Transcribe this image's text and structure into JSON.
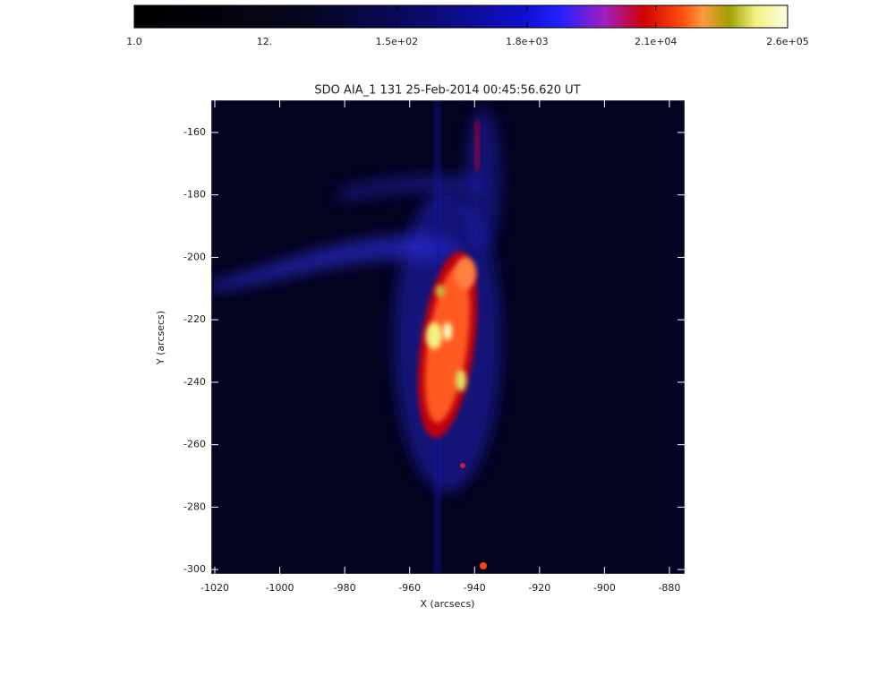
{
  "chart_data": {
    "type": "image",
    "title": "SDO AIA_1 131 25-Feb-2014 00:45:56.620 UT",
    "x_label": "X (arcsecs)",
    "y_label": "Y (arcsecs)",
    "xlim": [
      -1021.1,
      -875.3
    ],
    "xticks": [
      -1020,
      -1000,
      -980,
      -960,
      -940,
      -920,
      -900,
      -880
    ],
    "ylim": [
      -301.4,
      -149.7
    ],
    "yticks": [
      -300,
      -280,
      -260,
      -240,
      -220,
      -200,
      -180,
      -160
    ],
    "colorbar": {
      "scale": "log",
      "lim": [
        1,
        260000
      ],
      "ticks": [
        {
          "value": 1,
          "label": "1.0"
        },
        {
          "value": 12,
          "label": "12."
        },
        {
          "value": 150,
          "label": "1.5e+02"
        },
        {
          "value": 1800,
          "label": "1.8e+03"
        },
        {
          "value": 21000,
          "label": "2.1e+04"
        },
        {
          "value": 260000,
          "label": "2.6e+05"
        }
      ]
    }
  }
}
